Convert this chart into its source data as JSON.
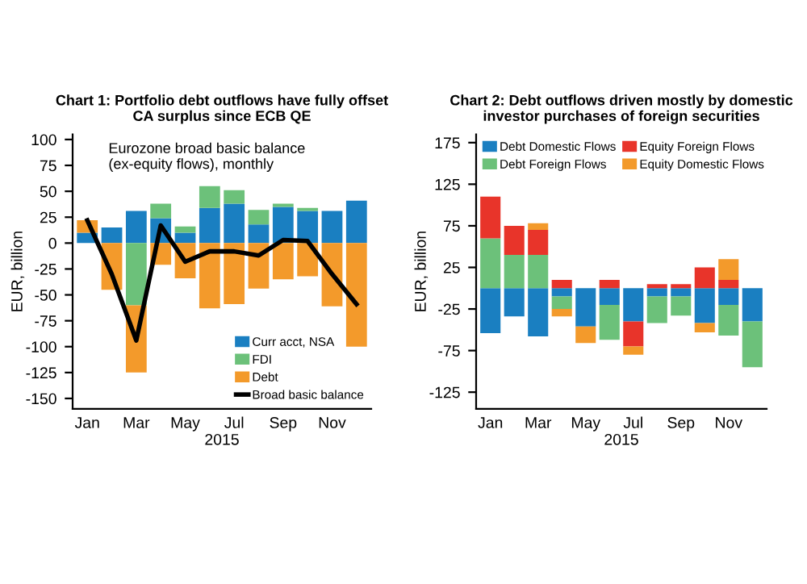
{
  "chart_data": [
    {
      "type": "bar",
      "stacked": true,
      "title": "Chart 1: Portfolio debt outflows have fully offset\nCA surplus since ECB QE",
      "xlabel": "2015",
      "ylabel": "EUR, billion",
      "annotations": [
        "Eurozone broad basic balance\n(ex-equity flows), monthly"
      ],
      "categories": [
        "Jan",
        null,
        "Mar",
        null,
        "May",
        null,
        "Jul",
        null,
        "Sep",
        null,
        "Nov",
        null
      ],
      "ylim": [
        -160,
        105
      ],
      "yticks": [
        -150,
        -125,
        -100,
        -75,
        -50,
        -25,
        0,
        25,
        50,
        75,
        100
      ],
      "legend": "bottom right",
      "grid": false,
      "series": [
        {
          "name": "Curr acct, NSA",
          "color": "#1a7fc1",
          "values": [
            10,
            15,
            31,
            24,
            10,
            34,
            38,
            18,
            35,
            31,
            31,
            41
          ]
        },
        {
          "name": "FDI",
          "color": "#6cc17a",
          "values": [
            0,
            0,
            -60,
            14,
            6,
            21,
            13,
            14,
            3,
            3,
            0,
            0
          ]
        },
        {
          "name": "Debt",
          "color": "#f39a2b",
          "values": [
            12,
            -45,
            -65,
            -21,
            -34,
            -63,
            -59,
            -44,
            -35,
            -32,
            -61,
            -100
          ]
        },
        {
          "name": "Broad basic balance",
          "type": "line",
          "color": "#000000",
          "values": [
            22,
            -30,
            -94,
            17,
            -18,
            -8,
            -8,
            -12,
            3,
            2,
            -30,
            -59
          ]
        }
      ]
    },
    {
      "type": "bar",
      "stacked": true,
      "title": "Chart 2: Debt outflows driven mostly by domestic\ninvestor purchases of foreign securities",
      "xlabel": "2015",
      "ylabel": "EUR, billion",
      "categories": [
        "Jan",
        null,
        "Mar",
        null,
        "May",
        null,
        "Jul",
        null,
        "Sep",
        null,
        "Nov",
        null
      ],
      "ylim": [
        -145,
        185
      ],
      "yticks": [
        -125,
        -75,
        -25,
        25,
        75,
        125,
        175
      ],
      "legend": "top left",
      "grid": false,
      "series": [
        {
          "name": "Debt Domestic Flows",
          "color": "#1a7fc1",
          "values": [
            -54,
            -34,
            -58,
            -10,
            -46,
            -20,
            -40,
            -10,
            -10,
            -42,
            -20,
            -40
          ]
        },
        {
          "name": "Debt Foreign Flows",
          "color": "#6cc17a",
          "values": [
            60,
            40,
            40,
            -15,
            0,
            -42,
            0,
            -32,
            -23,
            0,
            -37,
            -55
          ]
        },
        {
          "name": "Equity Foreign Flows",
          "color": "#e8342a",
          "values": [
            50,
            35,
            30,
            10,
            0,
            10,
            -30,
            5,
            5,
            25,
            10,
            0
          ]
        },
        {
          "name": "Equity Domestic Flows",
          "color": "#f39a2b",
          "values": [
            0,
            0,
            8,
            -9,
            -20,
            0,
            -10,
            0,
            0,
            -11,
            25,
            0
          ]
        }
      ]
    }
  ]
}
